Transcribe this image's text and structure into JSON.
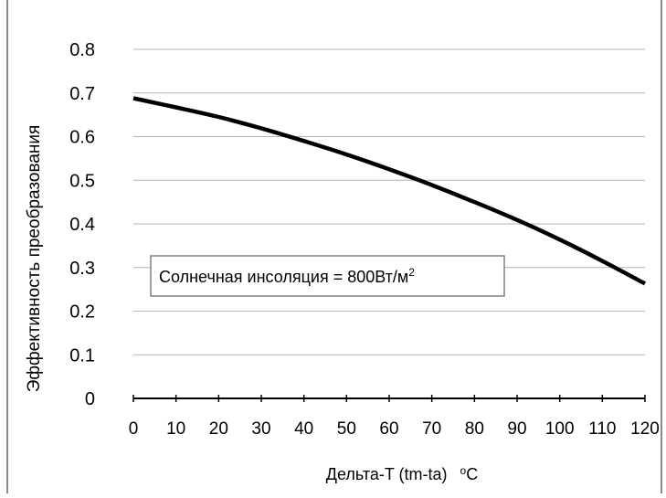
{
  "chart_data": {
    "type": "line",
    "title": "",
    "xlabel": "Дельта-T (tm-ta)",
    "xlabel_unit": "oC",
    "ylabel": "Эффективность преобразования",
    "x_ticks": [
      "0",
      "10",
      "20",
      "30",
      "40",
      "50",
      "60",
      "70",
      "80",
      "90",
      "100",
      "110",
      "120"
    ],
    "y_ticks": [
      "0",
      "0.1",
      "0.2",
      "0.3",
      "0.4",
      "0.5",
      "0.6",
      "0.7",
      "0.8"
    ],
    "xlim": [
      0,
      120
    ],
    "ylim": [
      0,
      0.8
    ],
    "grid": "horizontal",
    "annotation": {
      "text_main": "Солнечная инсоляция = 800Вт/м",
      "text_sup": "2"
    },
    "series": [
      {
        "x": [
          0,
          10,
          20,
          30,
          40,
          50,
          60,
          70,
          80,
          90,
          100,
          110,
          120
        ],
        "y": [
          0.688,
          0.667,
          0.645,
          0.619,
          0.59,
          0.559,
          0.525,
          0.489,
          0.45,
          0.409,
          0.364,
          0.315,
          0.263
        ]
      }
    ],
    "colors": {
      "line": "#000000",
      "grid": "#b3b3b3",
      "frame": "#898989",
      "box": "#808080"
    }
  }
}
